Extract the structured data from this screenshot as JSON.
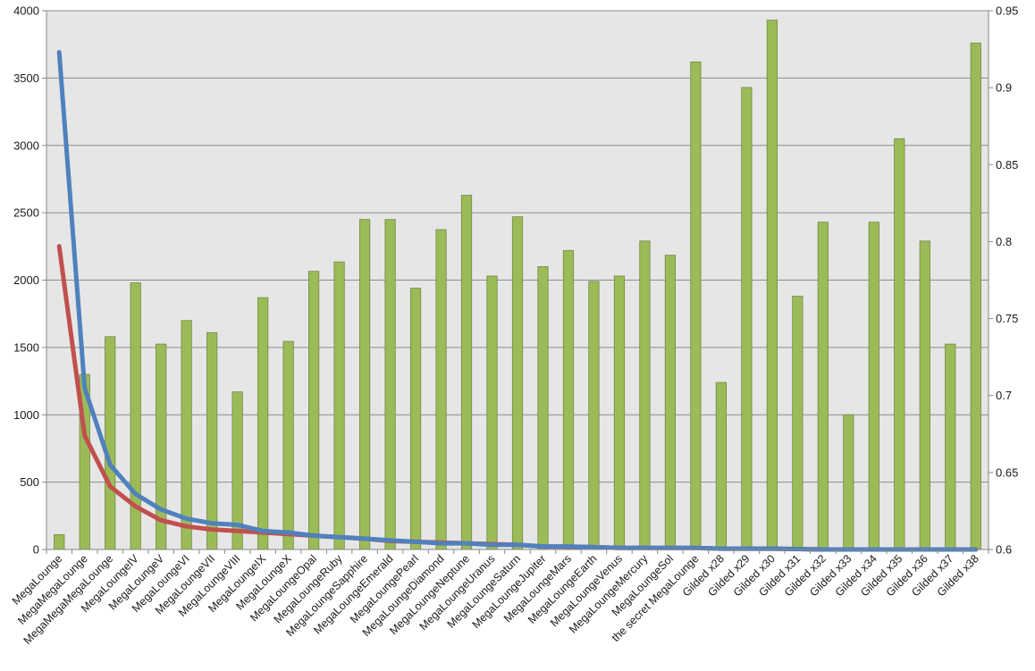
{
  "chart_data": {
    "type": "bar",
    "title": "",
    "xlabel": "",
    "ylabel": "",
    "y2label": "",
    "categories": [
      "MegaLounge",
      "MegaMegaLounge",
      "MegaMegaMegaLounge",
      "MegaLoungeIV",
      "MegaLoungeV",
      "MegaLoungeVI",
      "MegaLoungeVII",
      "MegaLoungeVIII",
      "MegaLoungeIX",
      "MegaLoungeX",
      "MegaLoungeOpal",
      "MegaLoungeRuby",
      "MegaLoungeSapphire",
      "MegaLoungeEmerald",
      "MegaLoungePearl",
      "MegaLoungeDiamond",
      "MegaLoungeNeptune",
      "MegaLoungeUranus",
      "MegaLoungeSaturn",
      "MegaLoungeJupiter",
      "MegaLoungeMars",
      "MegaLoungeEarth",
      "MegaLoungeVenus",
      "MegaLoungeMercury",
      "MegaLoungeSol",
      "the secret MegaLounge",
      "Gilded x28",
      "Gilded x29",
      "Gilded x30",
      "Gilded x31",
      "Gilded x32",
      "Gilded x33",
      "Gilded x34",
      "Gilded x35",
      "Gilded x36",
      "Gilded x37",
      "Gilded x38"
    ],
    "y_ticks": [
      "0",
      "500",
      "1000",
      "1500",
      "2000",
      "2500",
      "3000",
      "3500",
      "4000"
    ],
    "y2_ticks": [
      "0.6",
      "0.65",
      "0.7",
      "0.75",
      "0.8",
      "0.85",
      "0.9",
      "0.95"
    ],
    "ylim": [
      0,
      4000
    ],
    "y2lim": [
      0.6,
      0.95
    ],
    "grid": true,
    "legend": "none",
    "series": [
      {
        "type": "bar",
        "axis": "left",
        "color": "#9BBB59",
        "values": [
          110,
          1300,
          1580,
          1980,
          1525,
          1700,
          1610,
          1170,
          1870,
          1545,
          2065,
          2135,
          2450,
          2450,
          1940,
          2375,
          2630,
          2030,
          2470,
          2100,
          2220,
          1990,
          2030,
          2290,
          2185,
          3620,
          1240,
          3430,
          3930,
          1880,
          2430,
          1000,
          2430,
          3050,
          2290,
          1525,
          3760
        ]
      },
      {
        "type": "line",
        "axis": "right",
        "color": "#4F81BD",
        "values": [
          0.923,
          0.705,
          0.655,
          0.636,
          0.626,
          0.62,
          0.617,
          0.616,
          0.612,
          0.611,
          0.609,
          0.608,
          0.607,
          0.606,
          0.605,
          0.604,
          0.604,
          0.603,
          0.603,
          0.602,
          0.602,
          0.6015,
          0.601,
          0.601,
          0.601,
          0.601,
          0.6005,
          0.6005,
          0.6005,
          0.6003,
          0.6,
          0.6,
          0.6,
          0.6,
          0.6,
          0.6,
          0.6
        ]
      },
      {
        "type": "line",
        "axis": "right",
        "color": "#C0504D",
        "values": [
          0.797,
          0.674,
          0.641,
          0.628,
          0.619,
          0.615,
          0.613,
          0.612,
          0.611,
          0.61,
          0.609,
          0.608,
          0.607,
          0.6055,
          0.605,
          0.6045,
          0.604,
          0.6035,
          0.603,
          0.602,
          0.6018,
          0.6015,
          0.601,
          0.601,
          0.601,
          0.601,
          0.6005,
          0.6005,
          0.6005,
          0.6003,
          0.6,
          0.6,
          0.6,
          0.6,
          0.6,
          0.6,
          0.6
        ]
      }
    ]
  }
}
